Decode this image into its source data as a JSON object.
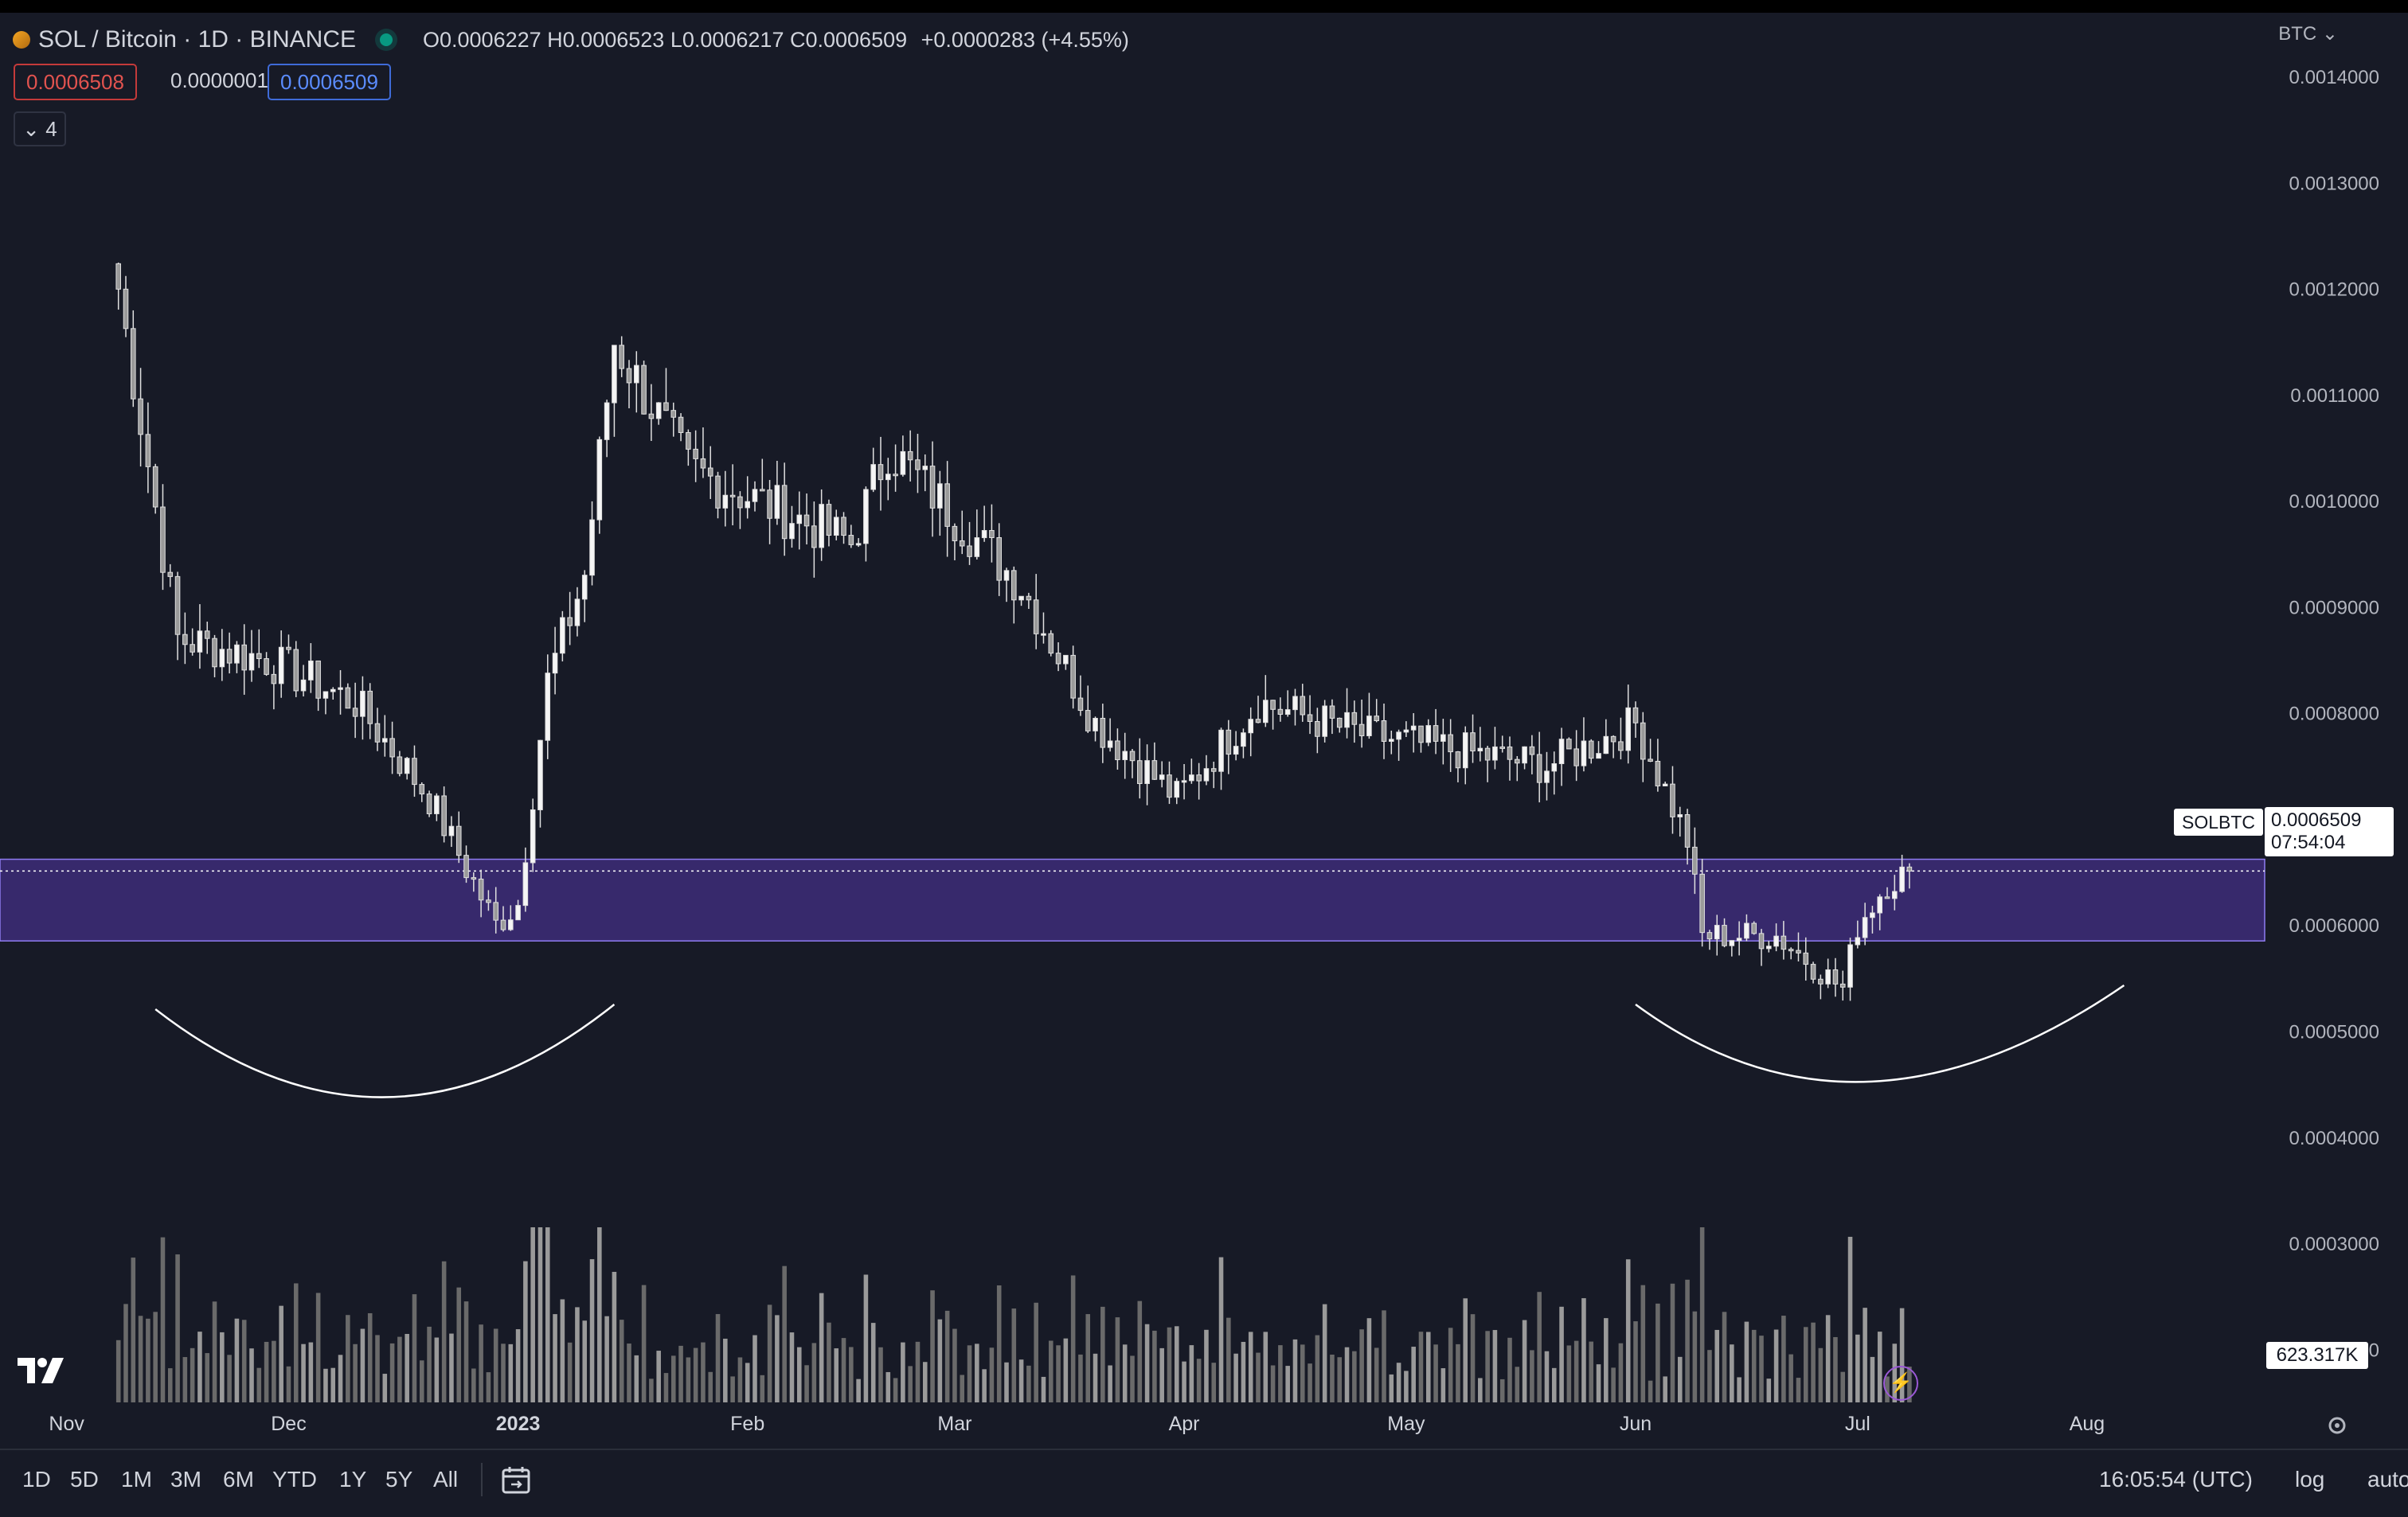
{
  "header": {
    "symbol_title": "SOL / Bitcoin · 1D · BINANCE",
    "ohlc": {
      "open": "O0.0006227",
      "high": "H0.0006523",
      "low": "L0.0006217",
      "close": "C0.0006509",
      "change": "+0.0000283 (+4.55%)"
    },
    "sell_price": "0.0006508",
    "spread": "0.0000001",
    "buy_price": "0.0006509",
    "indicators_count": "4",
    "currency": "BTC"
  },
  "price_labels": {
    "symbol": "SOLBTC",
    "last_price": "0.0006509",
    "countdown": "07:54:04",
    "last_volume": "623.317K"
  },
  "bottom_toolbar": {
    "ranges": [
      "1D",
      "5D",
      "1M",
      "3M",
      "6M",
      "YTD",
      "1Y",
      "5Y",
      "All"
    ],
    "clock": "16:05:54 (UTC)",
    "log_label": "log",
    "auto_label": "auto"
  },
  "colors": {
    "background": "#171a26",
    "candle": "#e0e0e0",
    "zone_fill": "#3b2a72",
    "zone_border": "#8f7cf0",
    "volume": "#808080"
  },
  "icons": [
    "tradingview-logo-icon",
    "flash-icon",
    "calendar-icon",
    "settings-gear-icon",
    "chevron-down-icon",
    "green-status-dot-icon"
  ],
  "chart_data": {
    "type": "candlestick",
    "title": "SOL / Bitcoin · 1D · BINANCE",
    "x_tick_labels": [
      "Nov",
      "Dec",
      "2023",
      "Feb",
      "Mar",
      "Apr",
      "May",
      "Jun",
      "Jul",
      "Aug"
    ],
    "y_tick_labels": [
      "0.0014000",
      "0.0013000",
      "0.0012000",
      "0.0011000",
      "0.0010000",
      "0.0009000",
      "0.0008000",
      "0.0007000",
      "0.0006000",
      "0.0005000",
      "0.0004000",
      "0.0003000",
      "0.0002000"
    ],
    "ylim": [
      0.00015,
      0.00146
    ],
    "xlim": [
      "2022-10-23",
      "2023-08-25"
    ],
    "support_zone": {
      "from": 0.000585,
      "to": 0.000662
    },
    "last_price": 0.0006509,
    "grid": false,
    "rounded_bottoms": [
      {
        "start": "2022-11-13",
        "bottom": "2022-12-14",
        "end": "2023-01-14"
      },
      {
        "start": "2023-06-01",
        "bottom": "2023-07-01",
        "end": "2023-08-06"
      }
    ],
    "key_points": [
      {
        "date": "2022-11-08",
        "close": 0.0012
      },
      {
        "date": "2022-11-16",
        "close": 0.00087
      },
      {
        "date": "2022-11-28",
        "close": 0.00085
      },
      {
        "date": "2022-12-10",
        "close": 0.00081
      },
      {
        "date": "2022-12-20",
        "close": 0.00072
      },
      {
        "date": "2022-12-29",
        "close": 0.0006
      },
      {
        "date": "2023-01-01",
        "close": 0.00062
      },
      {
        "date": "2023-01-05",
        "close": 0.00083
      },
      {
        "date": "2023-01-10",
        "close": 0.00093
      },
      {
        "date": "2023-01-14",
        "close": 0.00115
      },
      {
        "date": "2023-01-24",
        "close": 0.00103
      },
      {
        "date": "2023-02-15",
        "close": 0.00096
      },
      {
        "date": "2023-02-20",
        "close": 0.00105
      },
      {
        "date": "2023-03-10",
        "close": 0.00092
      },
      {
        "date": "2023-03-20",
        "close": 0.00079
      },
      {
        "date": "2023-03-31",
        "close": 0.00072
      },
      {
        "date": "2023-04-11",
        "close": 0.00081
      },
      {
        "date": "2023-04-25",
        "close": 0.00078
      },
      {
        "date": "2023-05-20",
        "close": 0.00075
      },
      {
        "date": "2023-06-01",
        "close": 0.00079
      },
      {
        "date": "2023-06-08",
        "close": 0.00068
      },
      {
        "date": "2023-06-10",
        "close": 0.00059
      },
      {
        "date": "2023-06-20",
        "close": 0.00059
      },
      {
        "date": "2023-06-29",
        "close": 0.00054
      },
      {
        "date": "2023-07-01",
        "close": 0.0006
      },
      {
        "date": "2023-07-05",
        "close": 0.00064
      },
      {
        "date": "2023-07-08",
        "close": 0.0006509
      }
    ]
  }
}
